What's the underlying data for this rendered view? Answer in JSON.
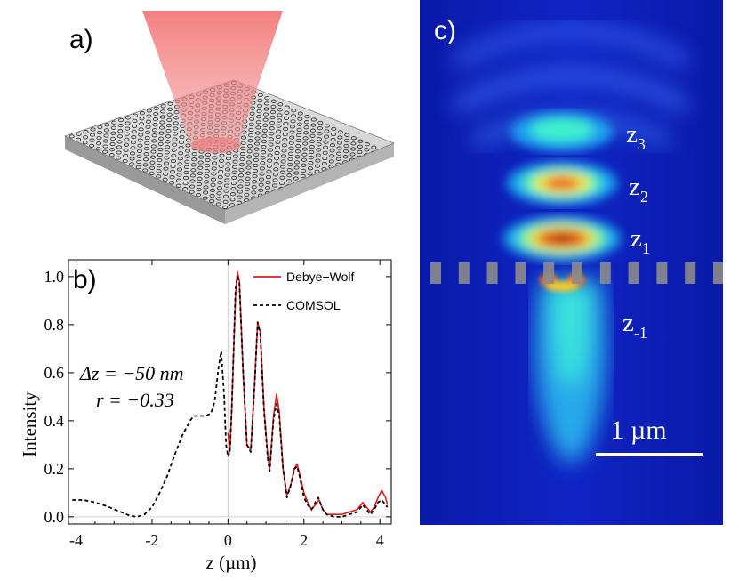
{
  "panels": {
    "a": {
      "label": "a)"
    },
    "b": {
      "label": "b)"
    },
    "c": {
      "label": "c)"
    }
  },
  "panel_c": {
    "zone_labels": [
      {
        "base": "z",
        "sub": "3"
      },
      {
        "base": "z",
        "sub": "2"
      },
      {
        "base": "z",
        "sub": "1"
      },
      {
        "base": "z",
        "sub": "-1"
      }
    ],
    "scalebar_label": "1 µm",
    "colormap": "jet"
  },
  "chart_data": {
    "type": "line",
    "xlabel": "z (µm)",
    "ylabel": "Intensity",
    "xlim": [
      -4.2,
      4.3
    ],
    "ylim": [
      -0.03,
      1.07
    ],
    "xticks": [
      -4,
      -2,
      0,
      2,
      4
    ],
    "yticks": [
      0.0,
      0.2,
      0.4,
      0.6,
      0.8,
      1.0
    ],
    "xtick_labels": [
      "-4",
      "-2",
      "0",
      "2",
      "4"
    ],
    "ytick_labels": [
      "0.0",
      "0.2",
      "0.4",
      "0.6",
      "0.8",
      "1.0"
    ],
    "legend": "top-right",
    "annotation_lines": [
      "Δz = −50 nm",
      "r = −0.33"
    ],
    "series": [
      {
        "name": "Debye−Wolf",
        "color": "#e41a1c",
        "style": "solid",
        "points": [
          [
            0.0,
            0.35
          ],
          [
            0.05,
            0.27
          ],
          [
            0.1,
            0.45
          ],
          [
            0.2,
            0.93
          ],
          [
            0.25,
            1.02
          ],
          [
            0.3,
            0.98
          ],
          [
            0.4,
            0.6
          ],
          [
            0.5,
            0.3
          ],
          [
            0.6,
            0.28
          ],
          [
            0.7,
            0.55
          ],
          [
            0.78,
            0.81
          ],
          [
            0.85,
            0.77
          ],
          [
            0.95,
            0.45
          ],
          [
            1.05,
            0.25
          ],
          [
            1.1,
            0.2
          ],
          [
            1.2,
            0.42
          ],
          [
            1.28,
            0.51
          ],
          [
            1.35,
            0.44
          ],
          [
            1.45,
            0.2
          ],
          [
            1.55,
            0.09
          ],
          [
            1.65,
            0.13
          ],
          [
            1.75,
            0.2
          ],
          [
            1.82,
            0.22
          ],
          [
            1.9,
            0.17
          ],
          [
            2.0,
            0.1
          ],
          [
            2.1,
            0.06
          ],
          [
            2.2,
            0.03
          ],
          [
            2.3,
            0.05
          ],
          [
            2.4,
            0.07
          ],
          [
            2.5,
            0.03
          ],
          [
            2.6,
            0.01
          ],
          [
            2.8,
            0.01
          ],
          [
            3.0,
            0.01
          ],
          [
            3.2,
            0.02
          ],
          [
            3.4,
            0.03
          ],
          [
            3.55,
            0.06
          ],
          [
            3.65,
            0.04
          ],
          [
            3.75,
            0.02
          ],
          [
            3.85,
            0.04
          ],
          [
            3.95,
            0.08
          ],
          [
            4.05,
            0.11
          ],
          [
            4.15,
            0.08
          ],
          [
            4.2,
            0.05
          ]
        ]
      },
      {
        "name": "COMSOL",
        "color": "#000000",
        "style": "dashed",
        "points": [
          [
            -4.1,
            0.07
          ],
          [
            -3.8,
            0.07
          ],
          [
            -3.5,
            0.06
          ],
          [
            -3.2,
            0.045
          ],
          [
            -2.9,
            0.025
          ],
          [
            -2.6,
            0.006
          ],
          [
            -2.4,
            0.0
          ],
          [
            -2.2,
            0.01
          ],
          [
            -2.0,
            0.04
          ],
          [
            -1.8,
            0.1
          ],
          [
            -1.6,
            0.17
          ],
          [
            -1.4,
            0.26
          ],
          [
            -1.2,
            0.34
          ],
          [
            -1.0,
            0.4
          ],
          [
            -0.9,
            0.42
          ],
          [
            -0.8,
            0.42
          ],
          [
            -0.6,
            0.42
          ],
          [
            -0.45,
            0.43
          ],
          [
            -0.35,
            0.48
          ],
          [
            -0.25,
            0.62
          ],
          [
            -0.18,
            0.69
          ],
          [
            -0.1,
            0.5
          ],
          [
            -0.05,
            0.3
          ],
          [
            0.0,
            0.25
          ],
          [
            0.05,
            0.27
          ],
          [
            0.1,
            0.45
          ],
          [
            0.2,
            0.95
          ],
          [
            0.25,
            1.0
          ],
          [
            0.3,
            0.97
          ],
          [
            0.4,
            0.6
          ],
          [
            0.5,
            0.3
          ],
          [
            0.6,
            0.27
          ],
          [
            0.7,
            0.55
          ],
          [
            0.78,
            0.81
          ],
          [
            0.85,
            0.76
          ],
          [
            0.95,
            0.44
          ],
          [
            1.05,
            0.24
          ],
          [
            1.1,
            0.19
          ],
          [
            1.2,
            0.41
          ],
          [
            1.28,
            0.47
          ],
          [
            1.35,
            0.42
          ],
          [
            1.45,
            0.2
          ],
          [
            1.55,
            0.08
          ],
          [
            1.65,
            0.13
          ],
          [
            1.75,
            0.2
          ],
          [
            1.82,
            0.21
          ],
          [
            1.9,
            0.16
          ],
          [
            2.0,
            0.08
          ],
          [
            2.1,
            0.05
          ],
          [
            2.2,
            0.03
          ],
          [
            2.3,
            0.06
          ],
          [
            2.38,
            0.08
          ],
          [
            2.5,
            0.03
          ],
          [
            2.6,
            0.01
          ],
          [
            2.8,
            0.0
          ],
          [
            3.0,
            0.0
          ],
          [
            3.2,
            0.01
          ],
          [
            3.4,
            0.02
          ],
          [
            3.55,
            0.05
          ],
          [
            3.65,
            0.03
          ],
          [
            3.75,
            0.01
          ],
          [
            3.85,
            0.03
          ],
          [
            3.95,
            0.06
          ],
          [
            4.05,
            0.07
          ],
          [
            4.15,
            0.05
          ],
          [
            4.2,
            0.04
          ]
        ]
      }
    ]
  }
}
